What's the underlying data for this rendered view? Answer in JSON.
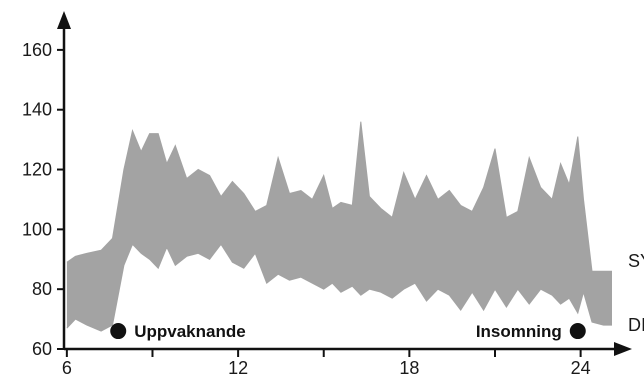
{
  "chart_data": {
    "type": "area",
    "title": "",
    "xlabel": "",
    "ylabel": "",
    "xlim": [
      5.9,
      25.8
    ],
    "ylim": [
      60,
      172
    ],
    "x_ticks": [
      6,
      12,
      18,
      24
    ],
    "x_minor_ticks": [
      9,
      15,
      21
    ],
    "y_ticks": [
      60,
      80,
      100,
      120,
      140,
      160
    ],
    "grid": false,
    "band_color": "#a3a3a3",
    "series": [
      {
        "name": "SYS",
        "x": [
          6,
          6.3,
          6.7,
          7.2,
          7.6,
          8,
          8.3,
          8.6,
          8.9,
          9.2,
          9.5,
          9.8,
          10.2,
          10.6,
          11,
          11.4,
          11.8,
          12.2,
          12.6,
          13,
          13.4,
          13.8,
          14.2,
          14.6,
          15,
          15.3,
          15.6,
          16,
          16.3,
          16.6,
          17,
          17.4,
          17.8,
          18.2,
          18.6,
          19,
          19.4,
          19.8,
          20.2,
          20.6,
          21,
          21.4,
          21.8,
          22.2,
          22.6,
          23,
          23.3,
          23.6,
          23.9,
          24.1,
          24.4,
          24.8,
          25.1
        ],
        "values": [
          89,
          91,
          92,
          93,
          97,
          120,
          133,
          126,
          132,
          132,
          122,
          128,
          117,
          120,
          118,
          111,
          116,
          112,
          106,
          108,
          124,
          112,
          113,
          110,
          118,
          107,
          109,
          108,
          136,
          111,
          107,
          104,
          119,
          110,
          118,
          110,
          113,
          108,
          106,
          114,
          127,
          104,
          106,
          124,
          114,
          110,
          122,
          115,
          131,
          110,
          86,
          86,
          86
        ]
      },
      {
        "name": "DIA",
        "x": [
          6,
          6.3,
          6.7,
          7.2,
          7.6,
          8,
          8.3,
          8.6,
          8.9,
          9.2,
          9.5,
          9.8,
          10.2,
          10.6,
          11,
          11.4,
          11.8,
          12.2,
          12.6,
          13,
          13.4,
          13.8,
          14.2,
          14.6,
          15,
          15.3,
          15.6,
          16,
          16.3,
          16.6,
          17,
          17.4,
          17.8,
          18.2,
          18.6,
          19,
          19.4,
          19.8,
          20.2,
          20.6,
          21,
          21.4,
          21.8,
          22.2,
          22.6,
          23,
          23.3,
          23.6,
          23.9,
          24.1,
          24.4,
          24.8,
          25.1
        ],
        "values": [
          67,
          70,
          68,
          66,
          68,
          88,
          95,
          92,
          90,
          87,
          94,
          88,
          91,
          92,
          90,
          95,
          89,
          87,
          92,
          82,
          85,
          83,
          84,
          82,
          80,
          82,
          79,
          81,
          78,
          80,
          79,
          77,
          80,
          82,
          76,
          80,
          78,
          73,
          79,
          73,
          80,
          74,
          80,
          75,
          80,
          78,
          75,
          77,
          72,
          79,
          69,
          68,
          68
        ]
      }
    ],
    "annotations": [
      {
        "label": "Uppvaknande",
        "x": 7.8,
        "y": 66
      },
      {
        "label": "Insomning",
        "x": 23.9,
        "y": 66
      }
    ]
  }
}
